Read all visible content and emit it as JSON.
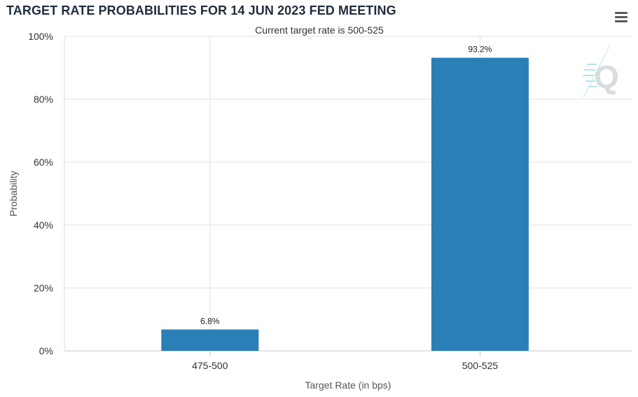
{
  "header": {
    "title": "TARGET RATE PROBABILITIES FOR 14 JUN 2023 FED MEETING",
    "menu_icon": "hamburger-menu-icon"
  },
  "chart_data": {
    "type": "bar",
    "title": "TARGET RATE PROBABILITIES FOR 14 JUN 2023 FED MEETING",
    "subtitle": "Current target rate is 500-525",
    "categories": [
      "475-500",
      "500-525"
    ],
    "values": [
      6.8,
      93.2
    ],
    "data_labels": [
      "6.8%",
      "93.2%"
    ],
    "xlabel": "Target Rate (in bps)",
    "ylabel": "Probability",
    "ylim": [
      0,
      100
    ],
    "yticks": [
      "0%",
      "20%",
      "40%",
      "60%",
      "80%",
      "100%"
    ],
    "grid": true,
    "legend": "none",
    "bar_color": "#2a7fb7",
    "grid_color": "#e2e2e2",
    "watermark": "Q"
  }
}
